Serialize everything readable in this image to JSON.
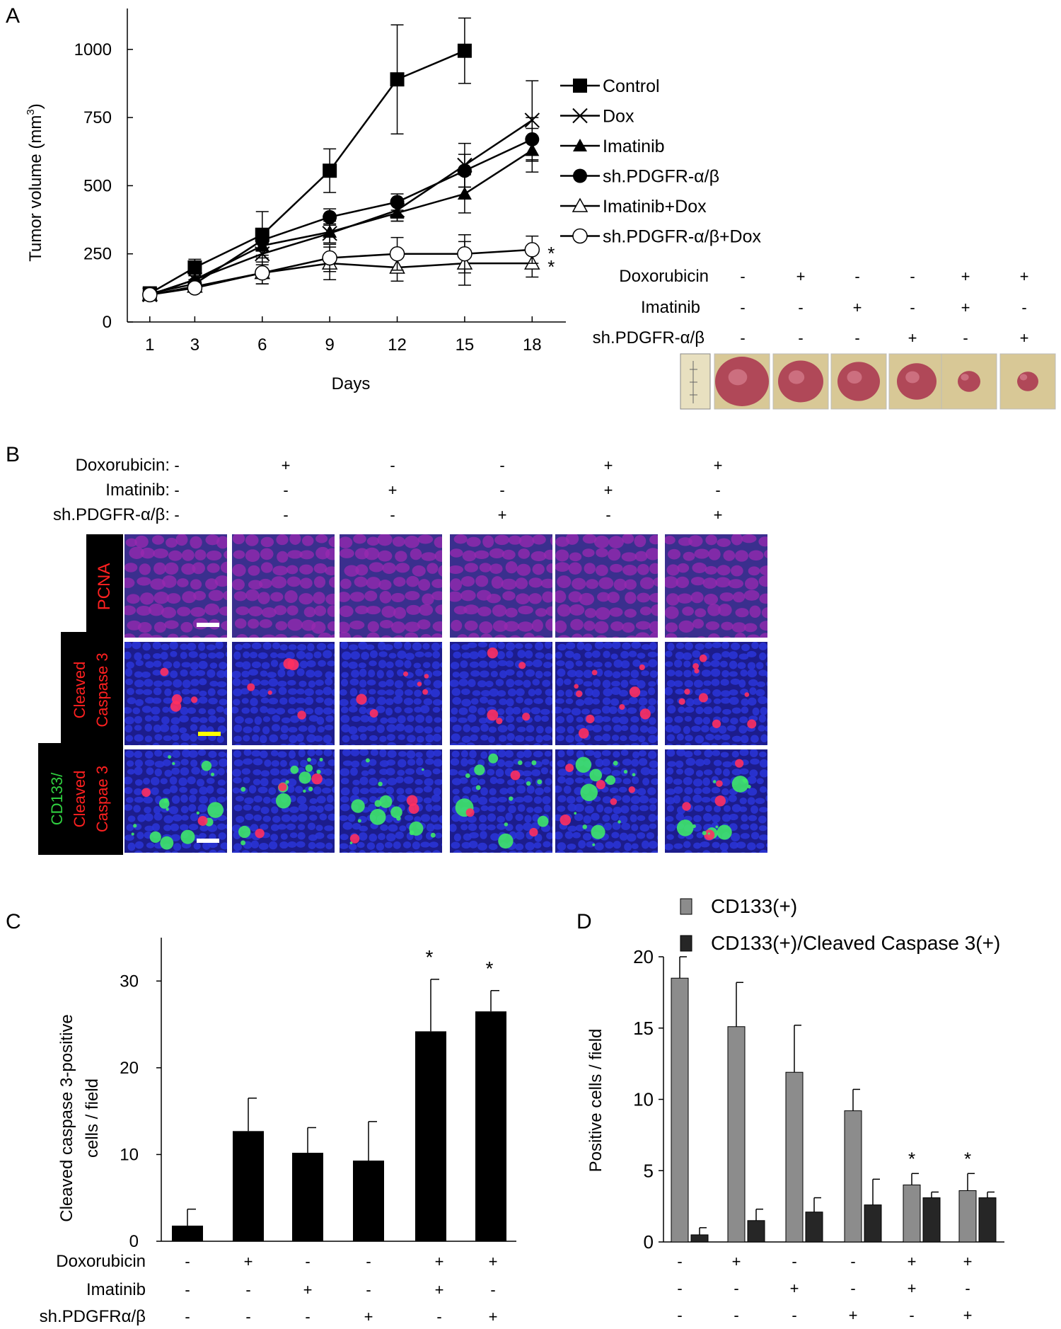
{
  "panels": {
    "A": "A",
    "B": "B",
    "C": "C",
    "D": "D"
  },
  "treatment_table": {
    "group_count": 6,
    "doxorubicin": [
      "-",
      "+",
      "-",
      "-",
      "+",
      "+"
    ],
    "imatinib": [
      "-",
      "-",
      "+",
      "-",
      "+",
      "-"
    ],
    "shpdgfr": [
      "-",
      "-",
      "-",
      "+",
      "-",
      "+"
    ]
  },
  "panel_a_rows": {
    "doxorubicin": "Doxorubicin",
    "imatinib": "Imatinib",
    "shpdgfr": "sh.PDGFR-α/β"
  },
  "panel_b_rows": {
    "doxorubicin": "Doxorubicin:",
    "imatinib": "Imatinib:",
    "shpdgfr": "sh.PDGFR-α/β:"
  },
  "panel_b_stains": {
    "pcna": "PCNA",
    "cleaved_1": "Cleaved",
    "cleaved_2": "Caspase 3",
    "cd133_1": "CD133/",
    "cd133_2": "Cleaved",
    "cd133_3": "Caspae 3"
  },
  "panel_c_rows": {
    "doxorubicin": "Doxorubicin",
    "imatinib": "Imatinib",
    "shpdgfr": "sh.PDGFRα/β"
  },
  "colors": {
    "microscopy_bg": "#1c1c8c",
    "pcna_bg": "#3a2f8e",
    "green": "#3ee86a",
    "red": "#ff3060",
    "scale_white": "#ffffff",
    "scale_yellow": "#ffff00",
    "bar_gray": "#8c8c8c",
    "bar_dark": "#262626",
    "tumor": "#b04858",
    "tumor_bg": "#d8c896"
  },
  "chart_data": [
    {
      "id": "A",
      "type": "line",
      "title": "",
      "xlabel": "Days",
      "ylabel": "Tumor volume (mm3)",
      "x": [
        1,
        3,
        6,
        9,
        12,
        15,
        18
      ],
      "xlim": [
        0,
        19.5
      ],
      "ylim": [
        0,
        1150
      ],
      "yticks": [
        0,
        250,
        500,
        750,
        1000
      ],
      "series": [
        {
          "name": "Control",
          "marker": "square-filled",
          "values": [
            105,
            200,
            320,
            555,
            890,
            995,
            null
          ],
          "errors": [
            10,
            30,
            85,
            80,
            200,
            120,
            null
          ]
        },
        {
          "name": "Dox",
          "marker": "x",
          "values": [
            100,
            155,
            250,
            325,
            410,
            575,
            740
          ],
          "errors": [
            8,
            15,
            40,
            35,
            40,
            80,
            145
          ]
        },
        {
          "name": "Imatinib",
          "marker": "triangle-filled",
          "values": [
            100,
            155,
            280,
            330,
            400,
            470,
            630
          ],
          "errors": [
            8,
            15,
            35,
            40,
            30,
            70,
            80
          ]
        },
        {
          "name": "sh.PDGFR-α/β",
          "marker": "circle-filled",
          "values": [
            105,
            140,
            300,
            385,
            440,
            555,
            670
          ],
          "errors": [
            8,
            15,
            40,
            30,
            30,
            60,
            80
          ]
        },
        {
          "name": "Imatinib+Dox",
          "marker": "triangle-open",
          "values": [
            100,
            130,
            180,
            215,
            200,
            215,
            215
          ],
          "errors": [
            8,
            10,
            40,
            60,
            50,
            80,
            50
          ]
        },
        {
          "name": "sh.PDGFR-α/β+Dox",
          "marker": "circle-open",
          "values": [
            100,
            125,
            180,
            235,
            250,
            250,
            265
          ],
          "errors": [
            8,
            10,
            40,
            50,
            60,
            70,
            50
          ]
        }
      ],
      "significance": [
        {
          "series": "sh.PDGFR-α/β+Dox",
          "label": "*"
        },
        {
          "series": "Imatinib+Dox",
          "label": "*"
        }
      ]
    },
    {
      "id": "C",
      "type": "bar",
      "title": "",
      "xlabel": "",
      "ylabel": "Cleaved caspase 3-positive cells / field",
      "ylim": [
        0,
        35
      ],
      "yticks": [
        0,
        10,
        20,
        30
      ],
      "values": [
        1.8,
        12.7,
        10.2,
        9.3,
        24.2,
        26.5
      ],
      "errors": [
        1.9,
        3.8,
        2.9,
        4.5,
        6.0,
        2.4
      ],
      "significance": [
        "",
        "",
        "",
        "",
        "*",
        "*"
      ]
    },
    {
      "id": "D",
      "type": "bar",
      "title": "",
      "xlabel": "",
      "ylabel": "Positive cells / field",
      "ylim": [
        0,
        20
      ],
      "yticks": [
        0,
        5,
        10,
        15,
        20
      ],
      "series": [
        {
          "name": "CD133(+)",
          "values": [
            18.5,
            15.1,
            11.9,
            9.2,
            4.0,
            3.6
          ],
          "errors": [
            1.5,
            3.1,
            3.3,
            1.5,
            0.8,
            1.2
          ]
        },
        {
          "name": "CD133(+)/Cleaved Caspase 3(+)",
          "values": [
            0.5,
            1.5,
            2.1,
            2.6,
            3.1,
            3.1
          ],
          "errors": [
            0.5,
            0.8,
            1.0,
            1.8,
            0.4,
            0.4
          ]
        }
      ],
      "significance": [
        "",
        "",
        "",
        "",
        "*",
        "*"
      ]
    }
  ]
}
